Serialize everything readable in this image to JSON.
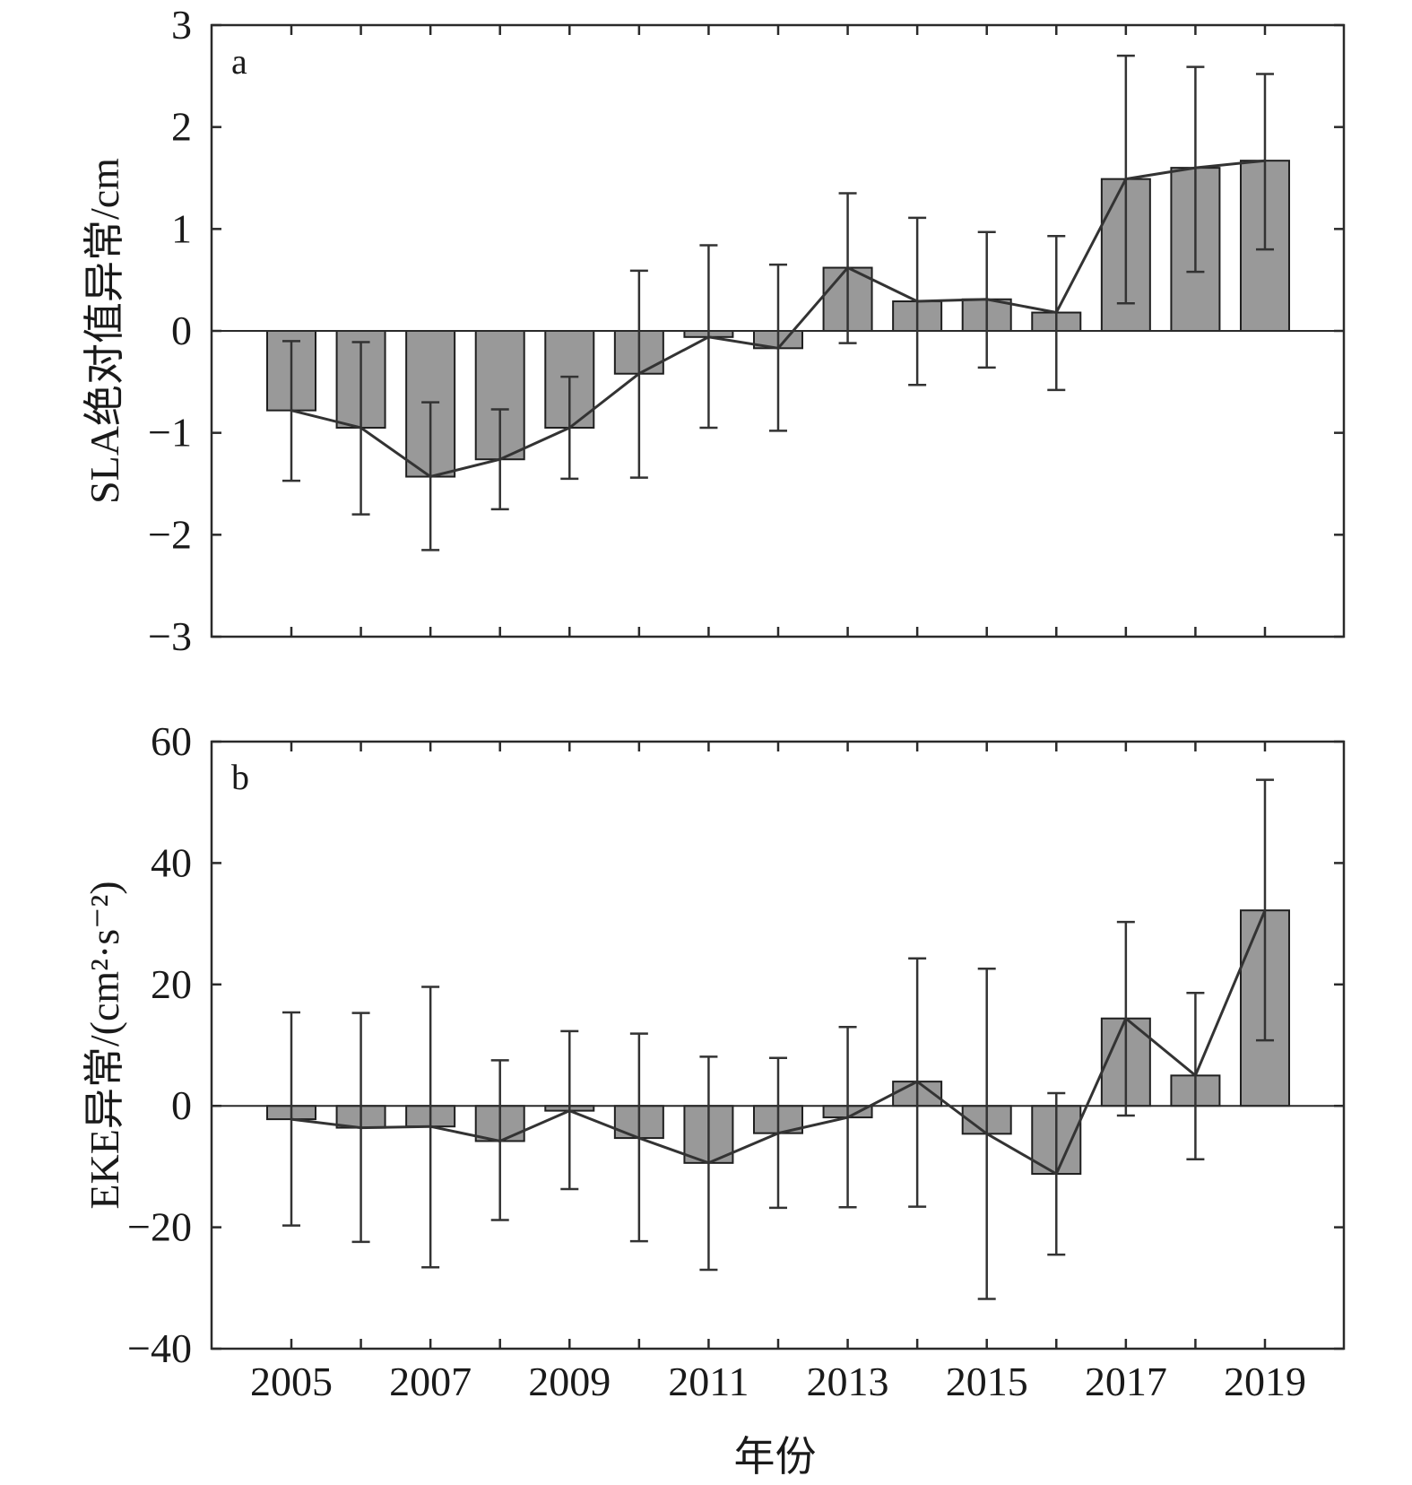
{
  "chart_data": [
    {
      "type": "bar",
      "panel_label": "a",
      "ylabel": "SLA绝对值异常/cm",
      "xlabel": "",
      "ylim": [
        -3,
        3
      ],
      "yticks": [
        -3,
        -2,
        -1,
        0,
        1,
        2,
        3
      ],
      "ytick_labels": [
        "−3",
        "−2",
        "−1",
        "0",
        "1",
        "2",
        "3"
      ],
      "x": [
        2005,
        2006,
        2007,
        2008,
        2009,
        2010,
        2011,
        2012,
        2013,
        2014,
        2015,
        2016,
        2017,
        2018,
        2019
      ],
      "xticks": [
        2005,
        2006,
        2007,
        2008,
        2009,
        2010,
        2011,
        2012,
        2013,
        2014,
        2015,
        2016,
        2017,
        2018,
        2019
      ],
      "values": [
        -0.78,
        -0.95,
        -1.43,
        -1.26,
        -0.95,
        -0.42,
        -0.06,
        -0.17,
        0.62,
        0.29,
        0.31,
        0.18,
        1.49,
        1.6,
        1.67
      ],
      "error_low": [
        -1.47,
        -1.8,
        -2.15,
        -1.75,
        -1.45,
        -1.44,
        -0.95,
        -0.98,
        -0.12,
        -0.53,
        -0.36,
        -0.58,
        0.27,
        0.58,
        0.8
      ],
      "error_high": [
        -0.1,
        -0.11,
        -0.7,
        -0.77,
        -0.45,
        0.59,
        0.84,
        0.65,
        1.35,
        1.11,
        0.97,
        0.93,
        2.7,
        2.59,
        2.52
      ],
      "grid": false,
      "line_overlay": true,
      "bar_color": "#999999"
    },
    {
      "type": "bar",
      "panel_label": "b",
      "ylabel": "EKE异常/(cm²·s⁻²)",
      "xlabel": "年份",
      "ylim": [
        -40,
        60
      ],
      "yticks": [
        -40,
        -20,
        0,
        20,
        40,
        60
      ],
      "ytick_labels": [
        "−40",
        "−20",
        "0",
        "20",
        "40",
        "60"
      ],
      "x": [
        2005,
        2006,
        2007,
        2008,
        2009,
        2010,
        2011,
        2012,
        2013,
        2014,
        2015,
        2016,
        2017,
        2018,
        2019
      ],
      "xticks": [
        2005,
        2006,
        2007,
        2008,
        2009,
        2010,
        2011,
        2012,
        2013,
        2014,
        2015,
        2016,
        2017,
        2018,
        2019
      ],
      "xtick_labels": [
        "2005",
        "",
        "2007",
        "",
        "2009",
        "",
        "2011",
        "",
        "2013",
        "",
        "2015",
        "",
        "2017",
        "",
        "2019"
      ],
      "values": [
        -2.2,
        -3.6,
        -3.4,
        -5.8,
        -0.8,
        -5.3,
        -9.4,
        -4.5,
        -1.9,
        4.0,
        -4.6,
        -11.2,
        14.4,
        5.0,
        32.2
      ],
      "error_low": [
        -19.7,
        -22.4,
        -26.6,
        -18.8,
        -13.7,
        -22.3,
        -27.0,
        -16.8,
        -16.7,
        -16.6,
        -31.8,
        -24.5,
        -1.6,
        -8.8,
        10.8
      ],
      "error_high": [
        15.4,
        15.3,
        19.6,
        7.5,
        12.3,
        11.9,
        8.1,
        7.9,
        13.0,
        24.3,
        22.6,
        2.1,
        30.3,
        18.6,
        53.7
      ],
      "grid": false,
      "line_overlay": true,
      "bar_color": "#999999"
    }
  ]
}
